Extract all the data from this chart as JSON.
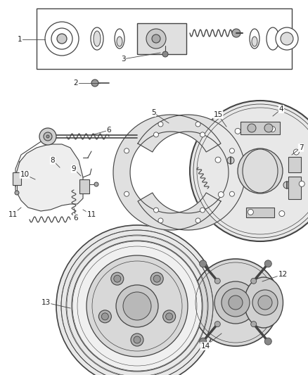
{
  "bg_color": "#ffffff",
  "line_color": "#444444",
  "label_color": "#222222",
  "label_fontsize": 7.5,
  "fig_w": 4.38,
  "fig_h": 5.33,
  "dpi": 100
}
